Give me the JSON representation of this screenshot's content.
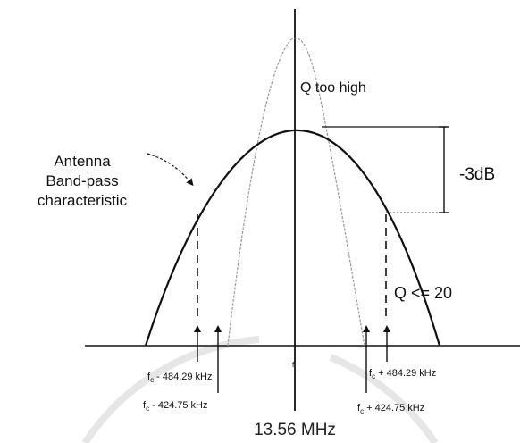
{
  "colors": {
    "ink": "#111111",
    "faint_curve": "#9a9a9a",
    "watermark": "#e8e8e8",
    "background": "#ffffff"
  },
  "labels": {
    "antenna_line1": "Antenna",
    "antenna_line2": "Band-pass",
    "antenna_line3": "characteristic",
    "q_too_high": "Q too high",
    "q_le_20": "Q <= 20",
    "minus_3db": "-3dB",
    "center_freq": "13.56 MHz",
    "center_tick": "f",
    "f_symbol": "f",
    "sub_c": "c",
    "left_outer_offset": " - 484.29 kHz",
    "left_inner_offset": " - 424.75 kHz",
    "right_outer_offset": " + 484.29 kHz",
    "right_inner_offset": " + 424.75 kHz"
  }
}
